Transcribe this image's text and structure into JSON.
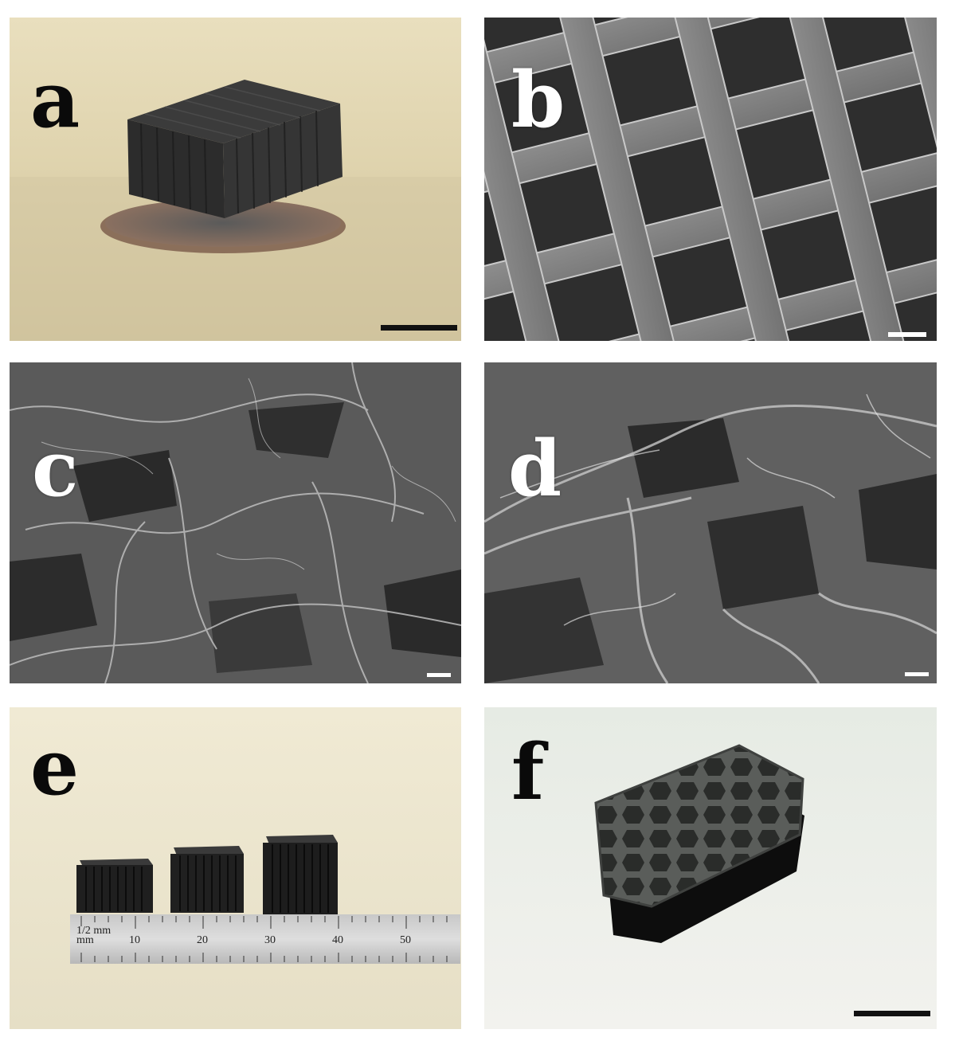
{
  "panels": [
    {
      "id": "a",
      "label": "a",
      "label_color": "#0a0a0a",
      "scalebar_color": "#111111"
    },
    {
      "id": "b",
      "label": "b",
      "label_color": "#ffffff",
      "scalebar_color": "#ffffff"
    },
    {
      "id": "c",
      "label": "c",
      "label_color": "#ffffff",
      "scalebar_color": "#ffffff"
    },
    {
      "id": "d",
      "label": "d",
      "label_color": "#ffffff",
      "scalebar_color": "#ffffff"
    },
    {
      "id": "e",
      "label": "e",
      "label_color": "#0a0a0a"
    },
    {
      "id": "f",
      "label": "f",
      "label_color": "#0a0a0a",
      "scalebar_color": "#111111"
    }
  ],
  "ruler": {
    "unit_top": "1/2 mm",
    "unit_bottom": "mm",
    "numbers": [
      "10",
      "20",
      "30",
      "40",
      "50"
    ]
  }
}
